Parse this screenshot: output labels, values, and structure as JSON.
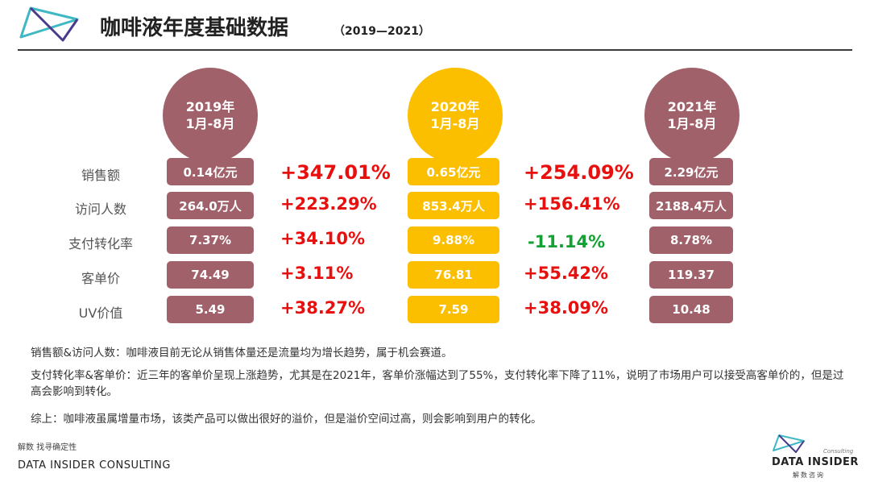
{
  "header": {
    "title": "咖啡液年度基础数据",
    "subtitle": "（2019—2021）"
  },
  "columns": [
    {
      "year": "2019年",
      "period": "1月-8月"
    },
    {
      "year": "2020年",
      "period": "1月-8月"
    },
    {
      "year": "2021年",
      "period": "1月-8月"
    }
  ],
  "rows": [
    {
      "label": "销售额",
      "v2019": "0.14亿元",
      "g1": "+347.01%",
      "v2020": "0.65亿元",
      "g2": "+254.09%",
      "v2021": "2.29亿元"
    },
    {
      "label": "访问人数",
      "v2019": "264.0万人",
      "g1": "+223.29%",
      "v2020": "853.4万人",
      "g2": "+156.41%",
      "v2021": "2188.4万人"
    },
    {
      "label": "支付转化率",
      "v2019": "7.37%",
      "g1": "+34.10%",
      "v2020": "9.88%",
      "g2": "-11.14%",
      "v2021": "8.78%"
    },
    {
      "label": "客单价",
      "v2019": "74.49",
      "g1": "+3.11%",
      "v2020": "76.81",
      "g2": "+55.42%",
      "v2021": "119.37"
    },
    {
      "label": "UV价值",
      "v2019": "5.49",
      "g1": "+38.27%",
      "v2020": "7.59",
      "g2": "+38.09%",
      "v2021": "10.48"
    }
  ],
  "notes": [
    "销售额&访问人数：咖啡液目前无论从销售体量还是流量均为增长趋势，属于机会赛道。",
    "支付转化率&客单价：近三年的客单价呈现上涨趋势，尤其是在2021年，客单价涨幅达到了55%，支付转化率下降了11%，说明了市场用户可以接受高客单价的，但是过高会影响到转化。",
    "综上：咖啡液虽属增量市场，该类产品可以做出很好的溢价，但是溢价空间过高，则会影响到用户的转化。"
  ],
  "footer": {
    "source": "解数 找寻确定性",
    "company": "DATA INSIDER CONSULTING",
    "brand_consulting": "Consulting",
    "brand_name": "DATA INSIDER",
    "brand_cn": "解数咨询"
  },
  "colors": {
    "mauve": "#a0616a",
    "gold": "#fcbf00",
    "positive": "#e8100f",
    "negative": "#14a134"
  },
  "icons": {
    "header_logo": "triangle-logo-icon",
    "footer_logo": "triangle-logo-icon"
  }
}
